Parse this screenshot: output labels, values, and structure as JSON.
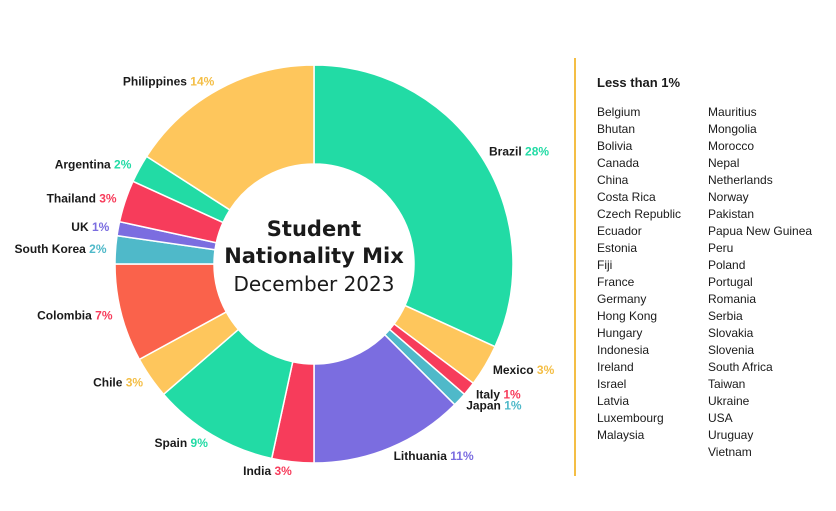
{
  "chart_data": {
    "type": "pie",
    "variant": "donut",
    "title": "Student Nationality Mix",
    "subtitle": "December 2023",
    "slices": [
      {
        "name": "Brazil",
        "label": "28%",
        "value": 28,
        "color": "#22dba5",
        "label_color": "#22dba5"
      },
      {
        "name": "Mexico",
        "label": "3%",
        "value": 3,
        "color": "#fec65c",
        "label_color": "#f4be45"
      },
      {
        "name": "Italy",
        "label": "1%",
        "value": 1,
        "color": "#f73c5b",
        "label_color": "#f73c5b"
      },
      {
        "name": "Japan",
        "label": "1%",
        "value": 1,
        "color": "#4fb9c9",
        "label_color": "#4fb9c9"
      },
      {
        "name": "Lithuania",
        "label": "11%",
        "value": 11,
        "color": "#7b6de0",
        "label_color": "#7b6de0"
      },
      {
        "name": "India",
        "label": "3%",
        "value": 3,
        "color": "#f73c5b",
        "label_color": "#f73c5b"
      },
      {
        "name": "Spain",
        "label": "9%",
        "value": 9,
        "color": "#22dba5",
        "label_color": "#22dba5"
      },
      {
        "name": "Chile",
        "label": "3%",
        "value": 3,
        "color": "#fec65c",
        "label_color": "#f4be45"
      },
      {
        "name": "Colombia",
        "label": "7%",
        "value": 7,
        "color": "#fa624b",
        "label_color": "#f73c5b"
      },
      {
        "name": "South Korea",
        "label": "2%",
        "value": 2,
        "color": "#4fb9c9",
        "label_color": "#4fb9c9"
      },
      {
        "name": "UK",
        "label": "1%",
        "value": 1,
        "color": "#7b6de0",
        "label_color": "#7b6de0"
      },
      {
        "name": "Thailand",
        "label": "3%",
        "value": 3,
        "color": "#f73c5b",
        "label_color": "#f73c5b"
      },
      {
        "name": "Argentina",
        "label": "2%",
        "value": 2,
        "color": "#22dba5",
        "label_color": "#22dba5"
      },
      {
        "name": "Philippines",
        "label": "14%",
        "value": 14,
        "color": "#fec65c",
        "label_color": "#f4be45"
      }
    ]
  },
  "less_than_title": "Less than 1%",
  "less_than_col1": [
    "Belgium",
    "Bhutan",
    "Bolivia",
    "Canada",
    "China",
    "Costa Rica",
    "Czech Republic",
    "Ecuador",
    "Estonia",
    "Fiji",
    "France",
    "Germany",
    "Hong Kong",
    "Hungary",
    "Indonesia",
    "Ireland",
    "Israel",
    "Latvia",
    "Luxembourg",
    "Malaysia"
  ],
  "less_than_col2": [
    "Mauritius",
    "Mongolia",
    "Morocco",
    "Nepal",
    "Netherlands",
    "Norway",
    "Pakistan",
    "Papua New Guinea",
    "Peru",
    "Poland",
    "Portugal",
    "Romania",
    "Serbia",
    "Slovakia",
    "Slovenia",
    "South Africa",
    "Taiwan",
    "Ukraine",
    "USA",
    "Uruguay",
    "Vietnam"
  ],
  "colors": {
    "divider": "#f4be45"
  }
}
